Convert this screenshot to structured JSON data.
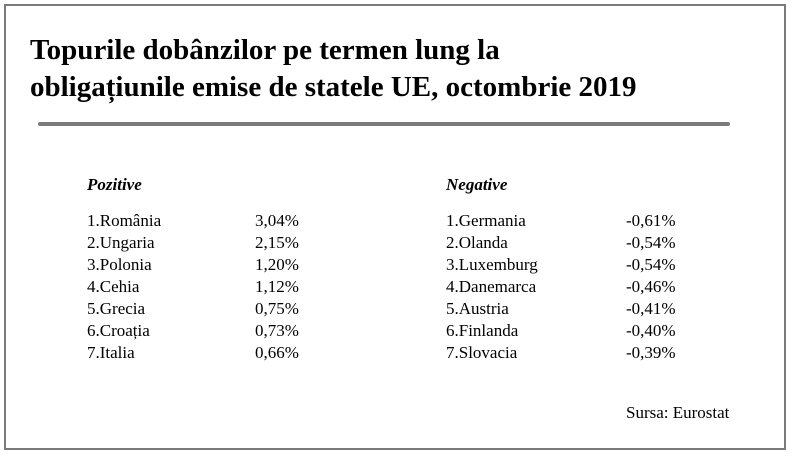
{
  "title": {
    "line1": "Topurile dobânzilor pe termen lung la",
    "line2": "obligațiunile emise de statele UE, octombrie 2019"
  },
  "positive": {
    "heading": "Pozitive",
    "items": [
      {
        "label": "1.România",
        "value": "3,04%"
      },
      {
        "label": "2.Ungaria",
        "value": "2,15%"
      },
      {
        "label": "3.Polonia",
        "value": "1,20%"
      },
      {
        "label": "4.Cehia",
        "value": "1,12%"
      },
      {
        "label": "5.Grecia",
        "value": "0,75%"
      },
      {
        "label": "6.Croația",
        "value": "0,73%"
      },
      {
        "label": "7.Italia",
        "value": "0,66%"
      }
    ]
  },
  "negative": {
    "heading": "Negative",
    "items": [
      {
        "label": "1.Germania",
        "value": "-0,61%"
      },
      {
        "label": "2.Olanda",
        "value": "-0,54%"
      },
      {
        "label": "3.Luxemburg",
        "value": "-0,54%"
      },
      {
        "label": "4.Danemarca",
        "value": "-0,46%"
      },
      {
        "label": "5.Austria",
        "value": "-0,41%"
      },
      {
        "label": "6.Finlanda",
        "value": "-0,40%"
      },
      {
        "label": "7.Slovacia",
        "value": "-0,39%"
      }
    ]
  },
  "source": "Sursa: Eurostat",
  "colors": {
    "frame": "#7a7a7a",
    "text": "#000000",
    "background": "#ffffff"
  }
}
